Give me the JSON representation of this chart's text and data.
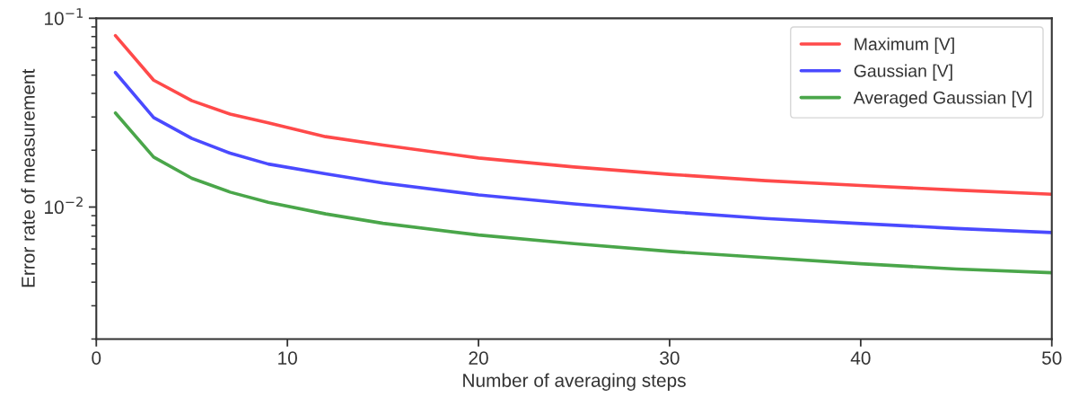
{
  "chart_data": {
    "type": "line",
    "xlabel": "Number of averaging steps",
    "ylabel": "Error rate of measurement",
    "x": [
      1,
      3,
      5,
      7,
      9,
      12,
      15,
      20,
      25,
      30,
      35,
      40,
      45,
      50
    ],
    "series": [
      {
        "name": "Maximum [V]",
        "color": "#ff4a4a",
        "values": [
          0.081,
          0.047,
          0.0366,
          0.0311,
          0.0279,
          0.0236,
          0.0213,
          0.0182,
          0.0163,
          0.0149,
          0.0138,
          0.013,
          0.0123,
          0.0117
        ]
      },
      {
        "name": "Gaussian [V]",
        "color": "#4a4aff",
        "values": [
          0.0516,
          0.0298,
          0.0231,
          0.0193,
          0.0169,
          0.015,
          0.0134,
          0.0116,
          0.0104,
          0.00944,
          0.0087,
          0.00818,
          0.0077,
          0.00733
        ]
      },
      {
        "name": "Averaged Gaussian [V]",
        "color": "#4aa64a",
        "values": [
          0.0315,
          0.0184,
          0.0142,
          0.012,
          0.0106,
          0.0092,
          0.0082,
          0.00711,
          0.0064,
          0.00582,
          0.0054,
          0.00501,
          0.0047,
          0.00449
        ]
      }
    ],
    "log": "y",
    "xlim": [
      0,
      50
    ],
    "xticks": [
      0,
      10,
      20,
      30,
      40,
      50
    ],
    "ylim": [
      0.002,
      0.1
    ],
    "yticks": [
      {
        "value": 0.01,
        "label": "10$^{−2}$"
      },
      {
        "value": 0.1,
        "label": "10$^{−1}$"
      }
    ],
    "grid": false,
    "legend": "top right",
    "line_style": "solid",
    "marker": "none"
  }
}
